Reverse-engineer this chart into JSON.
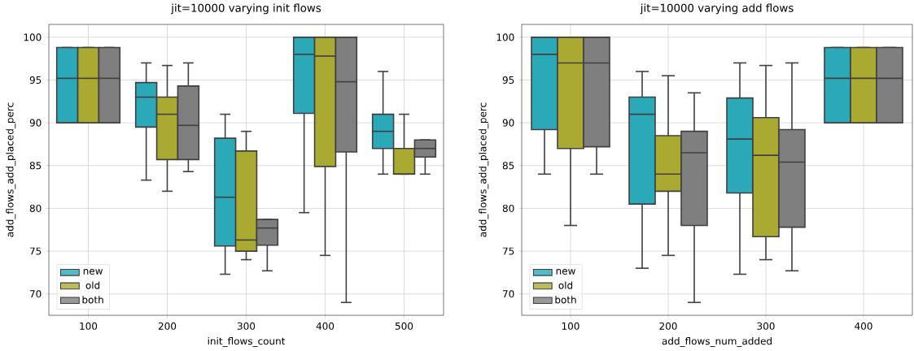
{
  "chart_data": [
    {
      "type": "box",
      "title": "jit=10000 varying init flows",
      "xlabel": "init_flows_count",
      "ylabel": "add_flows_add_placed_perc",
      "categories": [
        "100",
        "200",
        "300",
        "400",
        "500"
      ],
      "series": [
        {
          "name": "new",
          "color": "#2ca9b8",
          "boxes": [
            {
              "low": 90,
              "q1": 90,
              "median": 95.2,
              "q3": 98.8,
              "high": 98.8
            },
            {
              "low": 83.3,
              "q1": 89.5,
              "median": 93,
              "q3": 94.7,
              "high": 97
            },
            {
              "low": 72.3,
              "q1": 75.6,
              "median": 81.3,
              "q3": 88.2,
              "high": 91
            },
            {
              "low": 79.5,
              "q1": 91.1,
              "median": 98,
              "q3": 100,
              "high": 100
            },
            {
              "low": 84,
              "q1": 87,
              "median": 89,
              "q3": 91,
              "high": 96
            }
          ]
        },
        {
          "name": "old",
          "color": "#aaaa33",
          "boxes": [
            {
              "low": 90,
              "q1": 90,
              "median": 95.2,
              "q3": 98.8,
              "high": 98.8
            },
            {
              "low": 82,
              "q1": 85.7,
              "median": 91,
              "q3": 93,
              "high": 96.7
            },
            {
              "low": 74,
              "q1": 75,
              "median": 76.3,
              "q3": 86.7,
              "high": 89
            },
            {
              "low": 74.5,
              "q1": 84.9,
              "median": 97.8,
              "q3": 100,
              "high": 100
            },
            {
              "low": 84,
              "q1": 84,
              "median": 84,
              "q3": 87,
              "high": 91
            }
          ]
        },
        {
          "name": "both",
          "color": "#7f7f7f",
          "boxes": [
            {
              "low": 90,
              "q1": 90,
              "median": 95.2,
              "q3": 98.8,
              "high": 98.8
            },
            {
              "low": 84.3,
              "q1": 85.7,
              "median": 89.7,
              "q3": 94.3,
              "high": 97
            },
            {
              "low": 72.7,
              "q1": 75.7,
              "median": 77.7,
              "q3": 78.7,
              "high": 78.7
            },
            {
              "low": 69,
              "q1": 86.6,
              "median": 94.8,
              "q3": 100,
              "high": 100
            },
            {
              "low": 84,
              "q1": 86,
              "median": 87,
              "q3": 88,
              "high": 88
            }
          ]
        }
      ],
      "ylim": [
        67.5,
        101.5
      ],
      "yticks": [
        70,
        75,
        80,
        85,
        90,
        95,
        100
      ],
      "grid": true,
      "legend": "bottom left"
    },
    {
      "type": "box",
      "title": "jit=10000 varying add flows",
      "xlabel": "add_flows_num_added",
      "ylabel": "add_flows_add_placed_perc",
      "categories": [
        "100",
        "200",
        "300",
        "400"
      ],
      "series": [
        {
          "name": "new",
          "color": "#2ca9b8",
          "boxes": [
            {
              "low": 84,
              "q1": 89.2,
              "median": 98,
              "q3": 100,
              "high": 100
            },
            {
              "low": 73,
              "q1": 80.5,
              "median": 91,
              "q3": 93,
              "high": 96
            },
            {
              "low": 72.3,
              "q1": 81.8,
              "median": 88.1,
              "q3": 92.9,
              "high": 97
            },
            {
              "low": 90,
              "q1": 90,
              "median": 95.2,
              "q3": 98.8,
              "high": 98.8
            }
          ]
        },
        {
          "name": "old",
          "color": "#aaaa33",
          "boxes": [
            {
              "low": 78,
              "q1": 87,
              "median": 97,
              "q3": 100,
              "high": 100
            },
            {
              "low": 74.5,
              "q1": 82,
              "median": 84,
              "q3": 88.5,
              "high": 95.5
            },
            {
              "low": 74,
              "q1": 76.7,
              "median": 86.2,
              "q3": 90.6,
              "high": 96.7
            },
            {
              "low": 90,
              "q1": 90,
              "median": 95.2,
              "q3": 98.8,
              "high": 98.8
            }
          ]
        },
        {
          "name": "both",
          "color": "#7f7f7f",
          "boxes": [
            {
              "low": 84,
              "q1": 87.2,
              "median": 97,
              "q3": 100,
              "high": 100
            },
            {
              "low": 69,
              "q1": 78,
              "median": 86.5,
              "q3": 89,
              "high": 93.5
            },
            {
              "low": 72.7,
              "q1": 77.8,
              "median": 85.4,
              "q3": 89.2,
              "high": 97
            },
            {
              "low": 90,
              "q1": 90,
              "median": 95.2,
              "q3": 98.8,
              "high": 98.8
            }
          ]
        }
      ],
      "ylim": [
        67.5,
        101.5
      ],
      "yticks": [
        70,
        75,
        80,
        85,
        90,
        95,
        100
      ],
      "grid": true,
      "legend": "bottom left"
    }
  ]
}
